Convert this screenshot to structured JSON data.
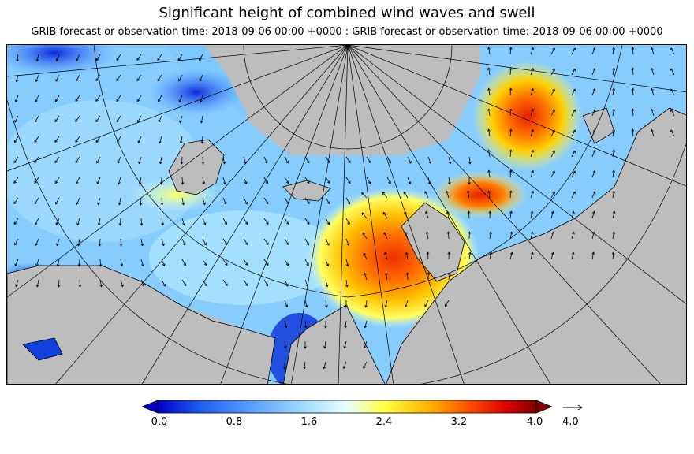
{
  "title": "Significant height of combined wind waves and swell",
  "subtitle": "GRIB forecast or observation time: 2018-09-06 00:00 +0000 : GRIB forecast or observation time: 2018-09-06 00:00 +0000",
  "colorbar": {
    "ticks": [
      "0.0",
      "0.8",
      "1.6",
      "2.4",
      "3.2",
      "4.0"
    ],
    "min": 0.0,
    "max": 4.0,
    "colors": [
      "#0000c8",
      "#1e5cf0",
      "#5aa0ff",
      "#a8e0ff",
      "#e8ffff",
      "#ffff40",
      "#ffb000",
      "#ff5000",
      "#e00000",
      "#800000"
    ]
  },
  "reference_arrow": {
    "label": "4.0"
  },
  "map": {
    "land_color": "#bdbdbd",
    "ice_color": "#bdbdbd",
    "coast_color": "#000000",
    "grid_color": "#000000"
  }
}
